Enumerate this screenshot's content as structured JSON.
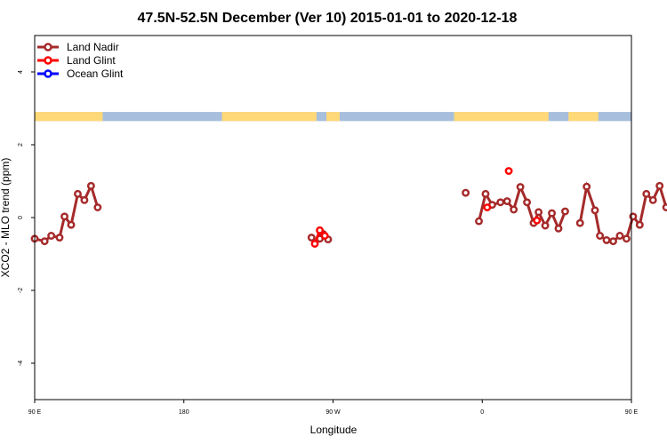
{
  "chart_data": {
    "type": "line",
    "title": "47.5N-52.5N December (Ver 10)   2015-01-01 to 2020-12-18",
    "xlabel": "Longitude",
    "ylabel": "XCO2 - MLO trend (ppm)",
    "xlim": [
      90,
      450
    ],
    "ylim": [
      -5,
      5
    ],
    "grid": false,
    "legend_position": "top-left",
    "x_ticks": [
      {
        "value": 90,
        "label": "90 E"
      },
      {
        "value": 180,
        "label": "180"
      },
      {
        "value": 270,
        "label": "90 W"
      },
      {
        "value": 360,
        "label": "0"
      },
      {
        "value": 450,
        "label": "90 E"
      }
    ],
    "y_ticks": [
      {
        "value": -4,
        "label": "-4"
      },
      {
        "value": -2,
        "label": "-2"
      },
      {
        "value": 0,
        "label": "0"
      },
      {
        "value": 2,
        "label": "2"
      },
      {
        "value": 4,
        "label": "4"
      }
    ],
    "surface_band": {
      "y_range": [
        2.65,
        2.9
      ],
      "land_color": "#FFD978",
      "ocean_color": "#A7BEDC",
      "land_segments": [
        [
          90,
          131
        ],
        [
          203,
          260
        ],
        [
          266,
          274
        ],
        [
          343,
          400
        ],
        [
          412,
          430
        ]
      ]
    },
    "series": [
      {
        "name": "Land Nadir",
        "color": "#A52A2A",
        "segments": [
          [
            [
              90,
              -0.58
            ],
            [
              96,
              -0.65
            ],
            [
              100,
              -0.5
            ],
            [
              105,
              -0.55
            ],
            [
              108,
              0.03
            ],
            [
              112,
              -0.2
            ],
            [
              116,
              0.65
            ],
            [
              120,
              0.48
            ],
            [
              124,
              0.87
            ],
            [
              128,
              0.28
            ]
          ],
          [
            [
              350,
              0.68
            ]
          ],
          [
            [
              358,
              -0.1
            ],
            [
              362,
              0.65
            ],
            [
              366,
              0.35
            ],
            [
              371,
              0.42
            ],
            [
              375,
              0.45
            ],
            [
              379,
              0.22
            ],
            [
              383,
              0.84
            ],
            [
              387,
              0.42
            ],
            [
              391,
              -0.15
            ],
            [
              394,
              0.15
            ],
            [
              398,
              -0.22
            ],
            [
              402,
              0.12
            ],
            [
              406,
              -0.3
            ],
            [
              410,
              0.17
            ]
          ],
          [
            [
              419,
              -0.15
            ],
            [
              423,
              0.85
            ],
            [
              428,
              0.2
            ],
            [
              431,
              -0.5
            ],
            [
              435,
              -0.62
            ],
            [
              439,
              -0.65
            ],
            [
              443,
              -0.5
            ],
            [
              447,
              -0.58
            ],
            [
              451,
              0.03
            ],
            [
              455,
              -0.2
            ],
            [
              459,
              0.65
            ],
            [
              463,
              0.48
            ],
            [
              467,
              0.87
            ],
            [
              471,
              0.28
            ]
          ]
        ],
        "points": [
          [
            257,
            -0.55
          ],
          [
            262,
            -0.58
          ],
          [
            264,
            -0.45
          ],
          [
            267,
            -0.6
          ]
        ]
      },
      {
        "name": "Land Glint",
        "color": "#FF0000",
        "segments": [
          [
            [
              259,
              -0.72
            ],
            [
              262,
              -0.35
            ],
            [
              265,
              -0.5
            ]
          ],
          [
            [
              363,
              0.28
            ]
          ],
          [
            [
              376,
              1.28
            ]
          ],
          [
            [
              393,
              -0.08
            ]
          ]
        ]
      },
      {
        "name": "Ocean Glint",
        "color": "#0000FF",
        "segments": []
      }
    ]
  }
}
